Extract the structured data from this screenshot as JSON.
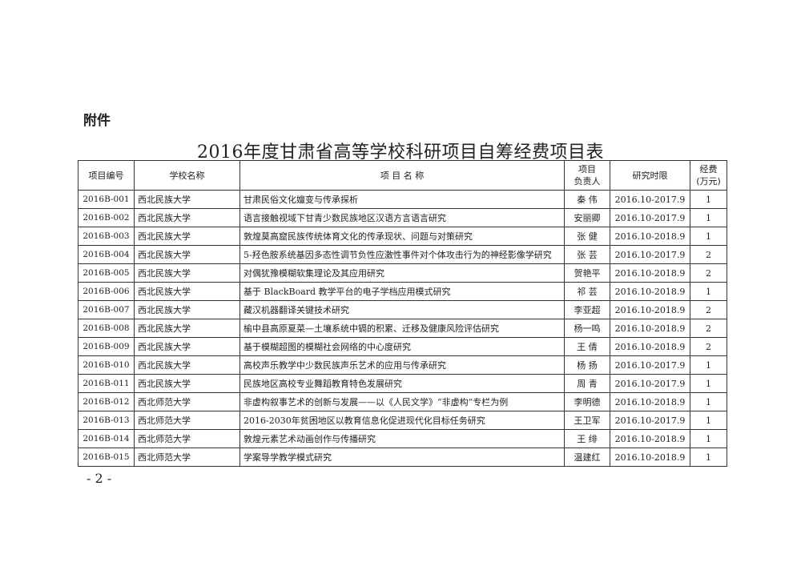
{
  "attachment_label": "附件",
  "title": "2016年度甘肃省高等学校科研项目自筹经费项目表",
  "table": {
    "headers": {
      "code": "项目编号",
      "school": "学校名称",
      "name": "项 目 名 称",
      "leader_line1": "项目",
      "leader_line2": "负责人",
      "period": "研究时限",
      "fund_line1": "经费",
      "fund_line2": "(万元)"
    },
    "rows": [
      {
        "code": "2016B-001",
        "school": "西北民族大学",
        "name": "甘肃民俗文化嬗变与传承探析",
        "leader": "秦 伟",
        "period": "2016.10-2017.9",
        "fund": "1"
      },
      {
        "code": "2016B-002",
        "school": "西北民族大学",
        "name": "语言接触视域下甘青少数民族地区汉语方言语言研究",
        "leader": "安丽卿",
        "period": "2016.10-2017.9",
        "fund": "1"
      },
      {
        "code": "2016B-003",
        "school": "西北民族大学",
        "name": "敦煌莫高窟民族传统体育文化的传承现状、问题与对策研究",
        "leader": "张 健",
        "period": "2016.10-2018.9",
        "fund": "1"
      },
      {
        "code": "2016B-004",
        "school": "西北民族大学",
        "name": "5-羟色胺系统基因多态性调节负性应激性事件对个体攻击行为的神经影像学研究",
        "leader": "张 芸",
        "period": "2016.10-2017.9",
        "fund": "2"
      },
      {
        "code": "2016B-005",
        "school": "西北民族大学",
        "name": "对偶犹豫模糊软集理论及其应用研究",
        "leader": "贺艳平",
        "period": "2016.10-2018.9",
        "fund": "2"
      },
      {
        "code": "2016B-006",
        "school": "西北民族大学",
        "name": "基于 BlackBoard 教学平台的电子学档应用模式研究",
        "leader": "祁 芸",
        "period": "2016.10-2018.9",
        "fund": "1"
      },
      {
        "code": "2016B-007",
        "school": "西北民族大学",
        "name": "藏汉机器翻译关键技术研究",
        "leader": "李亚超",
        "period": "2016.10-2018.9",
        "fund": "2"
      },
      {
        "code": "2016B-008",
        "school": "西北民族大学",
        "name": "榆中县高原夏菜—土壤系统中镉的积累、迁移及健康风险评估研究",
        "leader": "杨一鸣",
        "period": "2016.10-2018.9",
        "fund": "2"
      },
      {
        "code": "2016B-009",
        "school": "西北民族大学",
        "name": "基于模糊超图的模糊社会网络的中心度研究",
        "leader": "王 倩",
        "period": "2016.10-2018.9",
        "fund": "2"
      },
      {
        "code": "2016B-010",
        "school": "西北民族大学",
        "name": "高校声乐教学中少数民族声乐艺术的应用与传承研究",
        "leader": "杨 扬",
        "period": "2016.10-2017.9",
        "fund": "1"
      },
      {
        "code": "2016B-011",
        "school": "西北民族大学",
        "name": "民族地区高校专业舞蹈教育特色发展研究",
        "leader": "周 青",
        "period": "2016.10-2017.9",
        "fund": "1"
      },
      {
        "code": "2016B-012",
        "school": "西北师范大学",
        "name": "非虚构叙事艺术的创新与发展——以《人民文学》“非虚构”专栏为例",
        "leader": "李明德",
        "period": "2016.10-2018.9",
        "fund": "1"
      },
      {
        "code": "2016B-013",
        "school": "西北师范大学",
        "name": "2016-2030年贫困地区以教育信息化促进现代化目标任务研究",
        "leader": "王卫军",
        "period": "2016.10-2017.9",
        "fund": "1"
      },
      {
        "code": "2016B-014",
        "school": "西北师范大学",
        "name": "敦煌元素艺术动画创作与传播研究",
        "leader": "王 绯",
        "period": "2016.10-2018.9",
        "fund": "1"
      },
      {
        "code": "2016B-015",
        "school": "西北师范大学",
        "name": "学案导学教学模式研究",
        "leader": "温建红",
        "period": "2016.10-2018.9",
        "fund": "1"
      }
    ]
  },
  "page_number": "- 2 -"
}
